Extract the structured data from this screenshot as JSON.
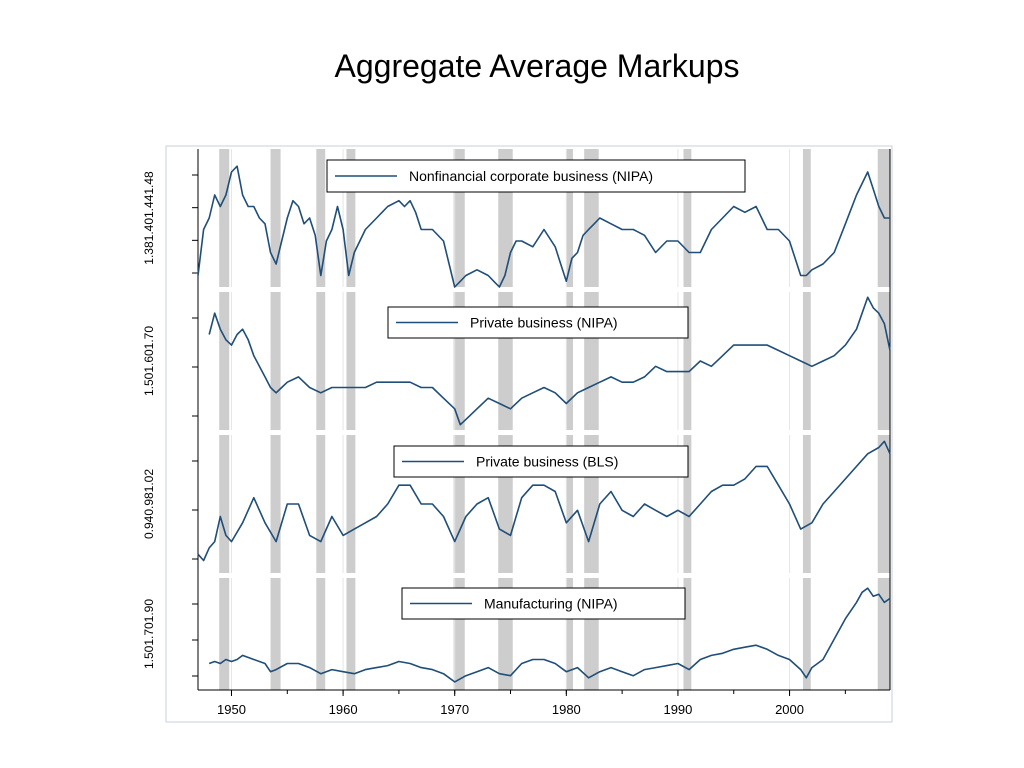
{
  "title": "Aggregate Average Markups",
  "chart_data": {
    "type": "line",
    "title": "Aggregate Average Markups",
    "xlabel": "",
    "x_ticks": [
      "1950",
      "1960",
      "1970",
      "1980",
      "1990",
      "2000"
    ],
    "xlim": [
      1947,
      2009
    ],
    "recessions": [
      [
        1948.9,
        1949.8
      ],
      [
        1953.5,
        1954.4
      ],
      [
        1957.6,
        1958.4
      ],
      [
        1960.3,
        1961.1
      ],
      [
        1969.9,
        1970.9
      ],
      [
        1973.9,
        1975.2
      ],
      [
        1980.0,
        1980.6
      ],
      [
        1981.6,
        1982.9
      ],
      [
        1990.5,
        1991.2
      ],
      [
        2001.2,
        2001.9
      ],
      [
        2007.9,
        2009
      ]
    ],
    "panels": [
      {
        "name": "Nonfinancial corporate business (NIPA)",
        "y_ticks": [
          "1.38",
          "1.40",
          "1.44",
          "1.48"
        ],
        "ylim": [
          1.37,
          1.49
        ],
        "x": [
          1947.0,
          1947.5,
          1948.0,
          1948.5,
          1949.0,
          1949.5,
          1950.0,
          1950.5,
          1951.0,
          1951.5,
          1952.0,
          1952.5,
          1953.0,
          1953.5,
          1954.0,
          1954.5,
          1955.0,
          1955.5,
          1956.0,
          1956.5,
          1957.0,
          1957.5,
          1958.0,
          1958.5,
          1959.0,
          1959.5,
          1960.0,
          1960.5,
          1961.0,
          1962.0,
          1963.0,
          1964.0,
          1965.0,
          1965.5,
          1966.0,
          1966.5,
          1967.0,
          1968.0,
          1969.0,
          1969.5,
          1970.0,
          1970.5,
          1971.0,
          1972.0,
          1973.0,
          1973.5,
          1974.0,
          1974.5,
          1975.0,
          1975.5,
          1976.0,
          1977.0,
          1978.0,
          1979.0,
          1979.5,
          1980.0,
          1980.5,
          1981.0,
          1981.5,
          1982.0,
          1982.5,
          1983.0,
          1984.0,
          1985.0,
          1986.0,
          1987.0,
          1988.0,
          1989.0,
          1990.0,
          1991.0,
          1992.0,
          1993.0,
          1994.0,
          1995.0,
          1996.0,
          1997.0,
          1998.0,
          1999.0,
          2000.0,
          2000.5,
          2001.0,
          2001.5,
          2002.0,
          2003.0,
          2004.0,
          2005.0,
          2006.0,
          2006.5,
          2007.0,
          2007.5,
          2008.0,
          2008.5,
          2009.0
        ],
        "values": [
          1.38,
          1.42,
          1.43,
          1.45,
          1.44,
          1.45,
          1.47,
          1.475,
          1.45,
          1.44,
          1.44,
          1.43,
          1.425,
          1.4,
          1.39,
          1.41,
          1.43,
          1.445,
          1.44,
          1.425,
          1.43,
          1.415,
          1.38,
          1.41,
          1.42,
          1.44,
          1.42,
          1.38,
          1.4,
          1.42,
          1.43,
          1.44,
          1.445,
          1.44,
          1.445,
          1.435,
          1.42,
          1.42,
          1.41,
          1.39,
          1.37,
          1.375,
          1.38,
          1.385,
          1.38,
          1.375,
          1.37,
          1.38,
          1.4,
          1.41,
          1.41,
          1.405,
          1.42,
          1.405,
          1.39,
          1.375,
          1.395,
          1.4,
          1.415,
          1.42,
          1.425,
          1.43,
          1.425,
          1.42,
          1.42,
          1.415,
          1.4,
          1.41,
          1.41,
          1.4,
          1.4,
          1.42,
          1.43,
          1.44,
          1.435,
          1.44,
          1.42,
          1.42,
          1.41,
          1.395,
          1.38,
          1.38,
          1.385,
          1.39,
          1.4,
          1.425,
          1.45,
          1.46,
          1.47,
          1.455,
          1.44,
          1.43,
          1.43
        ]
      },
      {
        "name": "Private business (NIPA)",
        "y_ticks": [
          "1.50",
          "1.60",
          "1.70"
        ],
        "ylim": [
          1.47,
          1.73
        ],
        "x": [
          1948.0,
          1948.5,
          1949.0,
          1949.5,
          1950.0,
          1950.5,
          1951.0,
          1951.5,
          1952.0,
          1953.0,
          1953.5,
          1954.0,
          1954.5,
          1955.0,
          1956.0,
          1957.0,
          1958.0,
          1959.0,
          1960.0,
          1961.0,
          1962.0,
          1963.0,
          1964.0,
          1965.0,
          1966.0,
          1967.0,
          1968.0,
          1969.0,
          1970.0,
          1970.5,
          1971.0,
          1972.0,
          1973.0,
          1974.0,
          1975.0,
          1976.0,
          1977.0,
          1978.0,
          1979.0,
          1980.0,
          1981.0,
          1982.0,
          1983.0,
          1984.0,
          1985.0,
          1986.0,
          1987.0,
          1988.0,
          1989.0,
          1990.0,
          1991.0,
          1992.0,
          1993.0,
          1994.0,
          1995.0,
          1996.0,
          1997.0,
          1998.0,
          1999.0,
          2000.0,
          2001.0,
          2002.0,
          2003.0,
          2004.0,
          2005.0,
          2006.0,
          2006.5,
          2007.0,
          2007.5,
          2008.0,
          2008.5,
          2009.0
        ],
        "values": [
          1.65,
          1.69,
          1.66,
          1.64,
          1.63,
          1.65,
          1.66,
          1.64,
          1.61,
          1.57,
          1.55,
          1.54,
          1.55,
          1.56,
          1.57,
          1.55,
          1.54,
          1.55,
          1.55,
          1.55,
          1.55,
          1.56,
          1.56,
          1.56,
          1.56,
          1.55,
          1.55,
          1.53,
          1.51,
          1.48,
          1.49,
          1.51,
          1.53,
          1.52,
          1.51,
          1.53,
          1.54,
          1.55,
          1.54,
          1.52,
          1.54,
          1.55,
          1.56,
          1.57,
          1.56,
          1.56,
          1.57,
          1.59,
          1.58,
          1.58,
          1.58,
          1.6,
          1.59,
          1.61,
          1.63,
          1.63,
          1.63,
          1.63,
          1.62,
          1.61,
          1.6,
          1.59,
          1.6,
          1.61,
          1.63,
          1.66,
          1.69,
          1.72,
          1.7,
          1.69,
          1.67,
          1.62
        ]
      },
      {
        "name": "Private business (BLS)",
        "y_ticks": [
          "0.94",
          "0.98",
          "1.02"
        ],
        "ylim": [
          0.93,
          1.04
        ],
        "x": [
          1947.0,
          1947.5,
          1948.0,
          1948.5,
          1949.0,
          1949.5,
          1950.0,
          1951.0,
          1952.0,
          1953.0,
          1954.0,
          1955.0,
          1956.0,
          1957.0,
          1958.0,
          1959.0,
          1960.0,
          1961.0,
          1962.0,
          1963.0,
          1964.0,
          1965.0,
          1966.0,
          1967.0,
          1968.0,
          1969.0,
          1970.0,
          1971.0,
          1972.0,
          1973.0,
          1974.0,
          1975.0,
          1976.0,
          1977.0,
          1978.0,
          1979.0,
          1980.0,
          1981.0,
          1982.0,
          1983.0,
          1984.0,
          1985.0,
          1986.0,
          1987.0,
          1988.0,
          1989.0,
          1990.0,
          1991.0,
          1992.0,
          1993.0,
          1994.0,
          1995.0,
          1996.0,
          1997.0,
          1998.0,
          1999.0,
          2000.0,
          2001.0,
          2002.0,
          2003.0,
          2004.0,
          2005.0,
          2006.0,
          2007.0,
          2008.0,
          2008.5,
          2009.0
        ],
        "values": [
          0.945,
          0.94,
          0.95,
          0.955,
          0.975,
          0.96,
          0.955,
          0.97,
          0.99,
          0.97,
          0.955,
          0.985,
          0.985,
          0.96,
          0.955,
          0.975,
          0.96,
          0.965,
          0.97,
          0.975,
          0.985,
          1.0,
          1.0,
          0.985,
          0.985,
          0.975,
          0.955,
          0.975,
          0.985,
          0.99,
          0.965,
          0.96,
          0.99,
          1.0,
          1.0,
          0.995,
          0.97,
          0.98,
          0.955,
          0.985,
          0.995,
          0.98,
          0.975,
          0.985,
          0.98,
          0.975,
          0.98,
          0.975,
          0.985,
          0.995,
          1.0,
          1.0,
          1.005,
          1.015,
          1.015,
          1.0,
          0.985,
          0.965,
          0.97,
          0.985,
          0.995,
          1.005,
          1.015,
          1.025,
          1.03,
          1.035,
          1.025
        ]
      },
      {
        "name": "Manufacturing (NIPA)",
        "y_ticks": [
          "1.50",
          "1.70",
          "1.90"
        ],
        "ylim": [
          1.45,
          2.0
        ],
        "x": [
          1948.0,
          1948.5,
          1949.0,
          1949.5,
          1950.0,
          1950.5,
          1951.0,
          1952.0,
          1953.0,
          1953.5,
          1954.0,
          1955.0,
          1956.0,
          1957.0,
          1958.0,
          1959.0,
          1960.0,
          1961.0,
          1962.0,
          1963.0,
          1964.0,
          1965.0,
          1966.0,
          1967.0,
          1968.0,
          1969.0,
          1970.0,
          1971.0,
          1972.0,
          1973.0,
          1974.0,
          1975.0,
          1976.0,
          1977.0,
          1978.0,
          1979.0,
          1980.0,
          1981.0,
          1982.0,
          1983.0,
          1984.0,
          1985.0,
          1986.0,
          1987.0,
          1988.0,
          1989.0,
          1990.0,
          1991.0,
          1992.0,
          1993.0,
          1994.0,
          1995.0,
          1996.0,
          1997.0,
          1998.0,
          1999.0,
          2000.0,
          2001.0,
          2001.5,
          2002.0,
          2003.0,
          2004.0,
          2005.0,
          2006.0,
          2006.5,
          2007.0,
          2007.5,
          2008.0,
          2008.5,
          2009.0
        ],
        "values": [
          1.58,
          1.59,
          1.58,
          1.6,
          1.59,
          1.6,
          1.62,
          1.6,
          1.58,
          1.54,
          1.55,
          1.58,
          1.58,
          1.56,
          1.53,
          1.55,
          1.54,
          1.53,
          1.55,
          1.56,
          1.57,
          1.59,
          1.58,
          1.56,
          1.55,
          1.53,
          1.49,
          1.52,
          1.54,
          1.56,
          1.53,
          1.52,
          1.58,
          1.6,
          1.6,
          1.58,
          1.54,
          1.56,
          1.51,
          1.54,
          1.56,
          1.54,
          1.52,
          1.55,
          1.56,
          1.57,
          1.58,
          1.55,
          1.6,
          1.62,
          1.63,
          1.65,
          1.66,
          1.67,
          1.65,
          1.62,
          1.6,
          1.55,
          1.51,
          1.56,
          1.6,
          1.7,
          1.8,
          1.88,
          1.93,
          1.95,
          1.91,
          1.92,
          1.88,
          1.9
        ]
      }
    ]
  }
}
